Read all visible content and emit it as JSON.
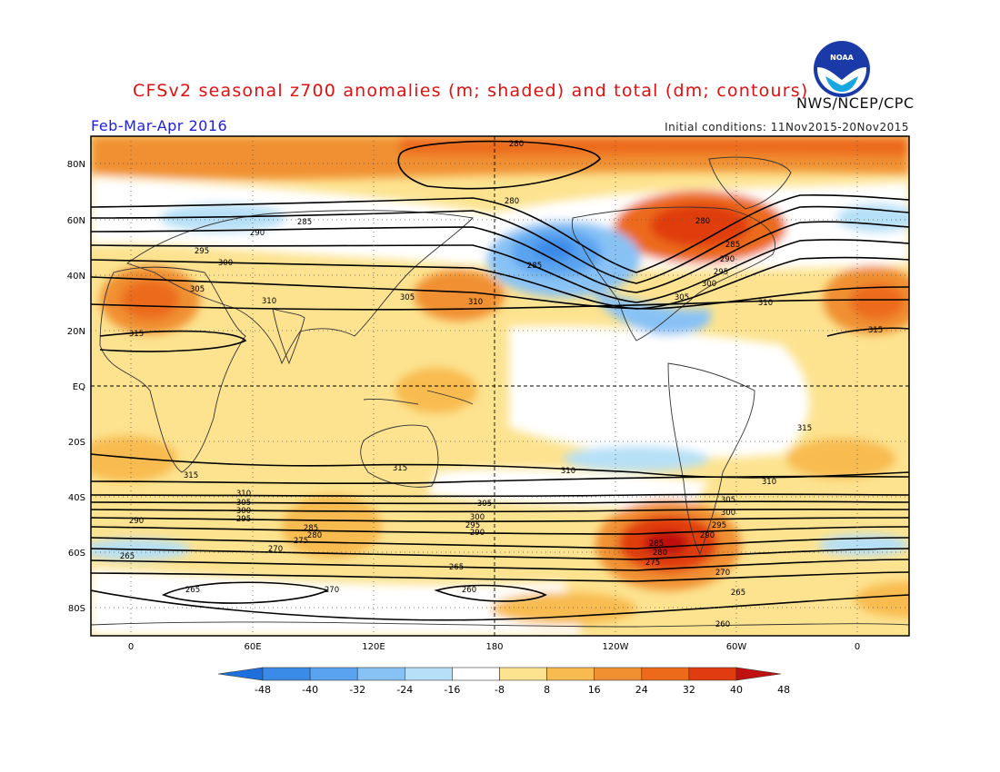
{
  "title": "CFSv2 seasonal z700 anomalies (m; shaded) and total (dm; contours)",
  "org": "NWS/NCEP/CPC",
  "season": "Feb-Mar-Apr 2016",
  "initial_conditions": "Initial conditions: 11Nov2015-20Nov2015",
  "logo_text": "NOAA",
  "latitude_labels": [
    "80N",
    "60N",
    "40N",
    "20N",
    "EQ",
    "20S",
    "40S",
    "60S",
    "80S"
  ],
  "longitude_labels": [
    "0",
    "60E",
    "120E",
    "180",
    "120W",
    "60W",
    "0"
  ],
  "colorbar": {
    "ticks": [
      "-48",
      "-40",
      "-32",
      "-24",
      "-16",
      "-8",
      "8",
      "16",
      "24",
      "32",
      "40",
      "48"
    ],
    "colors": [
      "#1e6fdc",
      "#3a8ae8",
      "#5aa3f0",
      "#88c2f5",
      "#b6e0f7",
      "#ffffff",
      "#fde390",
      "#f8bb50",
      "#f09030",
      "#ec6a1a",
      "#e03c10",
      "#c01010"
    ]
  },
  "contour_labels": {
    "nh": [
      "280",
      "285",
      "290",
      "295",
      "300",
      "305",
      "310",
      "315"
    ],
    "sh": [
      "315",
      "310",
      "305",
      "300",
      "295",
      "290",
      "285",
      "280",
      "275",
      "270",
      "265",
      "260"
    ]
  }
}
